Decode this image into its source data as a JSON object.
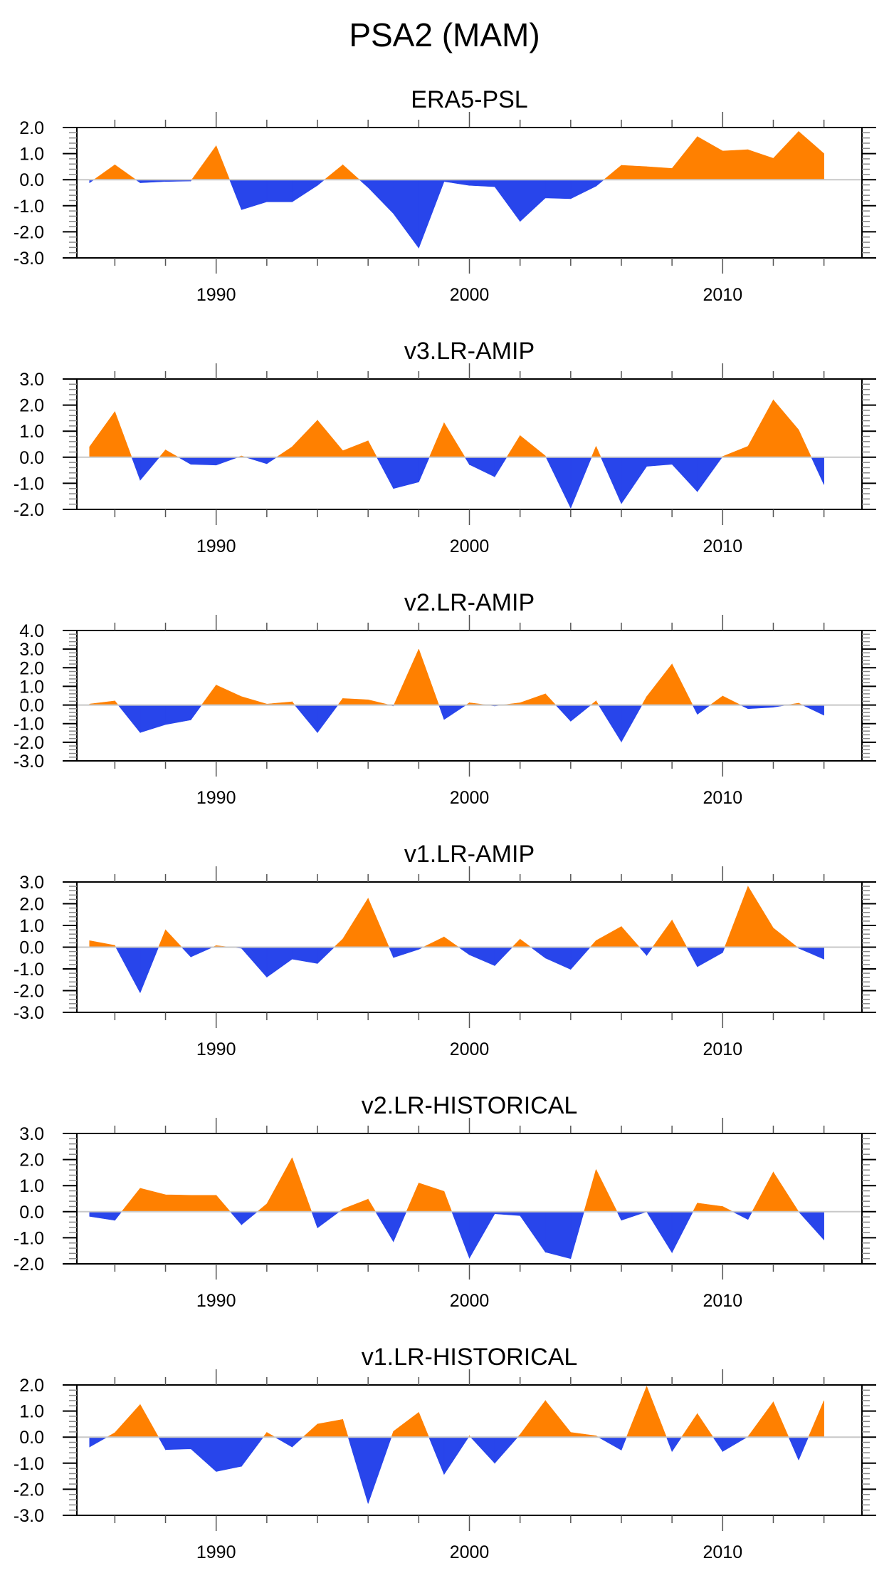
{
  "title": "PSA2 (MAM)",
  "chart_data": {
    "type": "area",
    "title": "PSA2 (MAM)",
    "x": [
      1985,
      1986,
      1987,
      1988,
      1989,
      1990,
      1991,
      1992,
      1993,
      1994,
      1995,
      1996,
      1997,
      1998,
      1999,
      2000,
      2001,
      2002,
      2003,
      2004,
      2005,
      2006,
      2007,
      2008,
      2009,
      2010,
      2011,
      2012,
      2013,
      2014
    ],
    "xlim": [
      1984.5,
      2015.5
    ],
    "xticks": [
      1990,
      2000,
      2010
    ],
    "xtick_labels": [
      "1990",
      "2000",
      "2010"
    ],
    "xlabel": "",
    "ylabel": "",
    "colors": {
      "positive": "#ff8000",
      "negative": "#2845eb",
      "zero_line": "#c8c8c8"
    },
    "panels": [
      {
        "title": "ERA5-PSL",
        "ylim": [
          -3.0,
          2.0
        ],
        "yticks": [
          "2.0",
          "1.0",
          "0.0",
          "-1.0",
          "-2.0",
          "-3.0"
        ],
        "values": [
          -0.12,
          0.57,
          -0.12,
          -0.07,
          -0.05,
          1.3,
          -1.15,
          -0.85,
          -0.85,
          -0.22,
          0.57,
          -0.3,
          -1.3,
          -2.62,
          -0.07,
          -0.22,
          -0.27,
          -1.6,
          -0.7,
          -0.73,
          -0.25,
          0.55,
          0.5,
          0.43,
          1.65,
          1.1,
          1.15,
          0.82,
          1.85,
          1.0
        ]
      },
      {
        "title": "v3.LR-AMIP",
        "ylim": [
          -2.0,
          3.0
        ],
        "yticks": [
          "3.0",
          "2.0",
          "1.0",
          "0.0",
          "-1.0",
          "-2.0"
        ],
        "values": [
          0.4,
          1.75,
          -0.88,
          0.28,
          -0.27,
          -0.3,
          0.05,
          -0.25,
          0.4,
          1.42,
          0.25,
          0.63,
          -1.2,
          -0.95,
          1.32,
          -0.28,
          -0.75,
          0.83,
          0.05,
          -1.95,
          0.42,
          -1.78,
          -0.35,
          -0.27,
          -1.32,
          0.03,
          0.42,
          2.2,
          1.05,
          -1.05
        ]
      },
      {
        "title": "v2.LR-AMIP",
        "ylim": [
          -3.0,
          4.0
        ],
        "yticks": [
          "4.0",
          "3.0",
          "2.0",
          "1.0",
          "0.0",
          "-1.0",
          "-2.0",
          "-3.0"
        ],
        "values": [
          0.05,
          0.22,
          -1.48,
          -1.05,
          -0.8,
          1.07,
          0.45,
          0.05,
          0.17,
          -1.48,
          0.35,
          0.28,
          -0.05,
          3.0,
          -0.78,
          0.12,
          -0.05,
          0.12,
          0.6,
          -0.87,
          0.22,
          -1.98,
          0.45,
          2.2,
          -0.5,
          0.48,
          -0.2,
          -0.12,
          0.1,
          -0.55
        ]
      },
      {
        "title": "v1.LR-AMIP",
        "ylim": [
          -3.0,
          3.0
        ],
        "yticks": [
          "3.0",
          "2.0",
          "1.0",
          "0.0",
          "-1.0",
          "-2.0",
          "-3.0"
        ],
        "values": [
          0.3,
          0.08,
          -2.1,
          0.8,
          -0.45,
          0.07,
          -0.05,
          -1.38,
          -0.55,
          -0.75,
          0.38,
          2.25,
          -0.48,
          -0.1,
          0.47,
          -0.35,
          -0.85,
          0.37,
          -0.5,
          -1.02,
          0.3,
          0.95,
          -0.38,
          1.25,
          -0.9,
          -0.25,
          2.8,
          0.88,
          -0.05,
          -0.55
        ]
      },
      {
        "title": "v2.LR-HISTORICAL",
        "ylim": [
          -2.0,
          3.0
        ],
        "yticks": [
          "3.0",
          "2.0",
          "1.0",
          "0.0",
          "-1.0",
          "-2.0"
        ],
        "values": [
          -0.18,
          -0.33,
          0.9,
          0.65,
          0.63,
          0.63,
          -0.5,
          0.3,
          2.07,
          -0.62,
          0.1,
          0.48,
          -1.15,
          1.1,
          0.78,
          -1.78,
          -0.08,
          -0.15,
          -1.55,
          -1.8,
          1.62,
          -0.33,
          0.0,
          -1.57,
          0.33,
          0.2,
          -0.3,
          1.52,
          0.0,
          -1.08
        ]
      },
      {
        "title": "v1.LR-HISTORICAL",
        "ylim": [
          -3.0,
          2.0
        ],
        "yticks": [
          "2.0",
          "1.0",
          "0.0",
          "-1.0",
          "-2.0",
          "-3.0"
        ],
        "values": [
          -0.38,
          0.17,
          1.25,
          -0.48,
          -0.45,
          -1.32,
          -1.12,
          0.18,
          -0.38,
          0.5,
          0.68,
          -2.55,
          0.22,
          0.95,
          -1.43,
          0.05,
          -1.0,
          0.1,
          1.4,
          0.18,
          0.05,
          -0.5,
          1.95,
          -0.55,
          0.9,
          -0.55,
          0.02,
          1.35,
          -0.88,
          1.4
        ]
      }
    ]
  }
}
